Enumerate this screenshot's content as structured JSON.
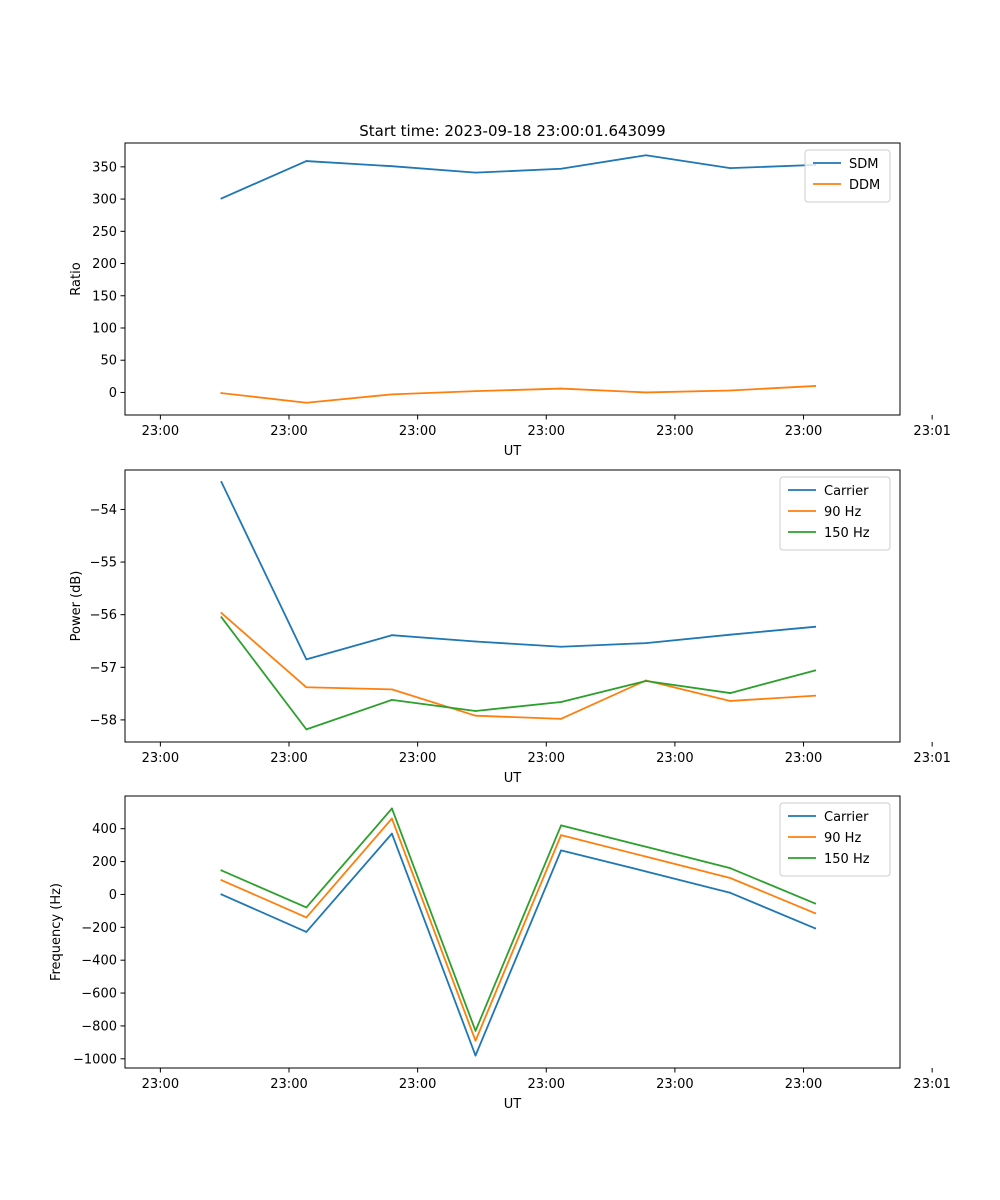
{
  "figure_title": "Start time: 2023-09-18 23:00:01.643099",
  "chart_data": [
    {
      "type": "line",
      "title": "Start time: 2023-09-18 23:00:01.643099",
      "xlabel": "UT",
      "ylabel": "Ratio",
      "x_tick_labels": [
        "23:00",
        "23:00",
        "23:00",
        "23:00",
        "23:00",
        "23:00",
        "23:01"
      ],
      "xlim": [
        -0.55,
        11.5
      ],
      "x": [
        0.95,
        2.27,
        3.6,
        4.9,
        6.23,
        7.55,
        8.86,
        10.18
      ],
      "ylim": [
        -35,
        387
      ],
      "y_ticks": [
        0,
        50,
        100,
        150,
        200,
        250,
        300,
        350
      ],
      "y_tick_labels": [
        "0",
        "50",
        "100",
        "150",
        "200",
        "250",
        "300",
        "350"
      ],
      "legend_position": "top-right",
      "series": [
        {
          "name": "SDM",
          "color": "#1f77b4",
          "values": [
            301,
            359,
            351,
            341,
            347,
            368,
            348,
            353
          ]
        },
        {
          "name": "DDM",
          "color": "#ff7f0e",
          "values": [
            -1,
            -16,
            -3,
            2,
            6,
            0,
            3,
            10
          ]
        }
      ]
    },
    {
      "type": "line",
      "title": "",
      "xlabel": "UT",
      "ylabel": "Power (dB)",
      "x_tick_labels": [
        "23:00",
        "23:00",
        "23:00",
        "23:00",
        "23:00",
        "23:00",
        "23:01"
      ],
      "xlim": [
        -0.55,
        11.5
      ],
      "x": [
        0.95,
        2.27,
        3.6,
        4.9,
        6.23,
        7.55,
        8.86,
        10.18
      ],
      "ylim": [
        -58.42,
        -53.25
      ],
      "y_ticks": [
        -58,
        -57,
        -56,
        -55,
        -54
      ],
      "y_tick_labels": [
        "−58",
        "−57",
        "−56",
        "−55",
        "−54"
      ],
      "legend_position": "top-right",
      "series": [
        {
          "name": "Carrier",
          "color": "#1f77b4",
          "values": [
            -53.48,
            -56.85,
            -56.39,
            -56.51,
            -56.61,
            -56.54,
            -56.38,
            -56.23
          ]
        },
        {
          "name": "90 Hz",
          "color": "#ff7f0e",
          "values": [
            -55.97,
            -57.38,
            -57.42,
            -57.92,
            -57.98,
            -57.25,
            -57.64,
            -57.54
          ]
        },
        {
          "name": "150 Hz",
          "color": "#2ca02c",
          "values": [
            -56.05,
            -58.18,
            -57.62,
            -57.83,
            -57.66,
            -57.26,
            -57.49,
            -57.06
          ]
        }
      ]
    },
    {
      "type": "line",
      "title": "",
      "xlabel": "UT",
      "ylabel": "Frequency (Hz)",
      "x_tick_labels": [
        "23:00",
        "23:00",
        "23:00",
        "23:00",
        "23:00",
        "23:00",
        "23:01"
      ],
      "xlim": [
        -0.55,
        11.5
      ],
      "x": [
        0.95,
        2.27,
        3.6,
        4.9,
        6.23,
        7.55,
        8.86,
        10.18
      ],
      "ylim": [
        -1056,
        599
      ],
      "y_ticks": [
        -1000,
        -800,
        -600,
        -400,
        -200,
        0,
        200,
        400
      ],
      "y_tick_labels": [
        "−1000",
        "−800",
        "−600",
        "−400",
        "−200",
        "0",
        "200",
        "400"
      ],
      "legend_position": "top-right",
      "series": [
        {
          "name": "Carrier",
          "color": "#1f77b4",
          "values": [
            0,
            -228,
            370,
            -980,
            268,
            140,
            10,
            -206
          ]
        },
        {
          "name": "90 Hz",
          "color": "#ff7f0e",
          "values": [
            87,
            -140,
            462,
            -890,
            361,
            230,
            100,
            -114
          ]
        },
        {
          "name": "150 Hz",
          "color": "#2ca02c",
          "values": [
            146,
            -79,
            523,
            -830,
            420,
            290,
            160,
            -55
          ]
        }
      ]
    }
  ]
}
